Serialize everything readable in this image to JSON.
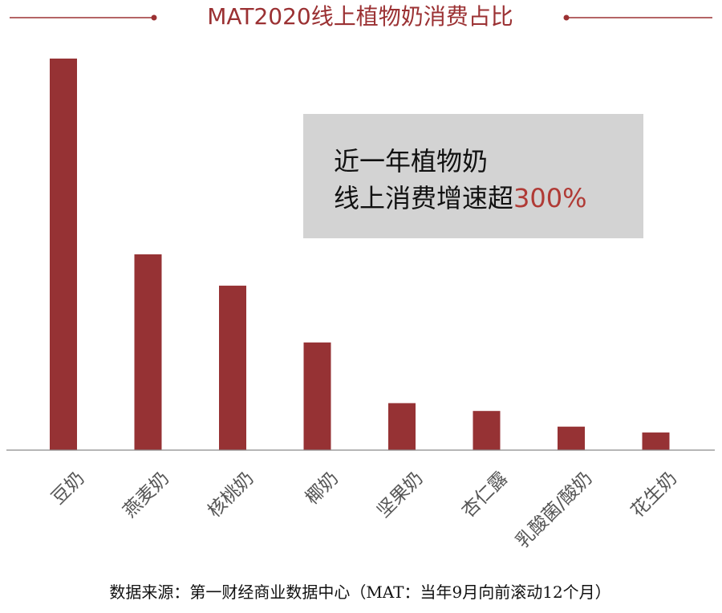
{
  "colors": {
    "bar": "#963234",
    "accent": "#b03a35",
    "title": "#9b3133",
    "callout_bg": "#d3d3d3"
  },
  "chart_data": {
    "type": "bar",
    "title": "MAT2020线上植物奶消费占比",
    "categories": [
      "豆奶",
      "燕麦奶",
      "核桃奶",
      "椰奶",
      "坚果奶",
      "杏仁露",
      "乳酸菌/酸奶",
      "花生奶"
    ],
    "values": [
      100,
      50,
      42,
      27.5,
      12,
      10,
      6,
      4.5
    ],
    "ylim": [
      0,
      100
    ],
    "xlabel": "",
    "ylabel": "",
    "grid": false
  },
  "callout": {
    "line1": "近一年植物奶",
    "line2_prefix": "线上消费增速超",
    "line2_highlight": "300%"
  },
  "source": "数据来源：第一财经商业数据中心（MAT：当年9月向前滚动12个月）"
}
